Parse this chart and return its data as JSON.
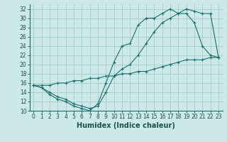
{
  "title": "",
  "xlabel": "Humidex (Indice chaleur)",
  "ylabel": "",
  "xlim": [
    -0.5,
    23.5
  ],
  "ylim": [
    10,
    33
  ],
  "xticks": [
    0,
    1,
    2,
    3,
    4,
    5,
    6,
    7,
    8,
    9,
    10,
    11,
    12,
    13,
    14,
    15,
    16,
    17,
    18,
    19,
    20,
    21,
    22,
    23
  ],
  "yticks": [
    10,
    12,
    14,
    16,
    18,
    20,
    22,
    24,
    26,
    28,
    30,
    32
  ],
  "bg_color": "#cce8e8",
  "grid_color": "#aacfcf",
  "line_color": "#1a7070",
  "line1_x": [
    0,
    1,
    2,
    3,
    4,
    5,
    6,
    7,
    8,
    9,
    10,
    11,
    12,
    13,
    14,
    15,
    16,
    17,
    18,
    19,
    20,
    21,
    22,
    23
  ],
  "line1_y": [
    15.5,
    15,
    13.5,
    12.5,
    12,
    11,
    10.5,
    10,
    11.5,
    16,
    20.5,
    24,
    24.5,
    28.5,
    30,
    30,
    31,
    32,
    31,
    31,
    29,
    24,
    22,
    21.5
  ],
  "line2_x": [
    0,
    1,
    2,
    3,
    4,
    5,
    6,
    7,
    8,
    9,
    10,
    11,
    12,
    13,
    14,
    15,
    16,
    17,
    18,
    19,
    20,
    21,
    22,
    23
  ],
  "line2_y": [
    15.5,
    15,
    14,
    13,
    12.5,
    11.5,
    11,
    10.5,
    11,
    14,
    17.5,
    19,
    20,
    22,
    24.5,
    27,
    29,
    30,
    31,
    32,
    31.5,
    31,
    31,
    21.5
  ],
  "line3_x": [
    0,
    1,
    2,
    3,
    4,
    5,
    6,
    7,
    8,
    9,
    10,
    11,
    12,
    13,
    14,
    15,
    16,
    17,
    18,
    19,
    20,
    21,
    22,
    23
  ],
  "line3_y": [
    15.5,
    15.5,
    15.5,
    16,
    16,
    16.5,
    16.5,
    17,
    17,
    17.5,
    17.5,
    18,
    18,
    18.5,
    18.5,
    19,
    19.5,
    20,
    20.5,
    21,
    21,
    21,
    21.5,
    21.5
  ],
  "tick_color": "#1a5050",
  "tick_fontsize": 5.5,
  "xlabel_fontsize": 7,
  "xlabel_fontweight": "bold"
}
